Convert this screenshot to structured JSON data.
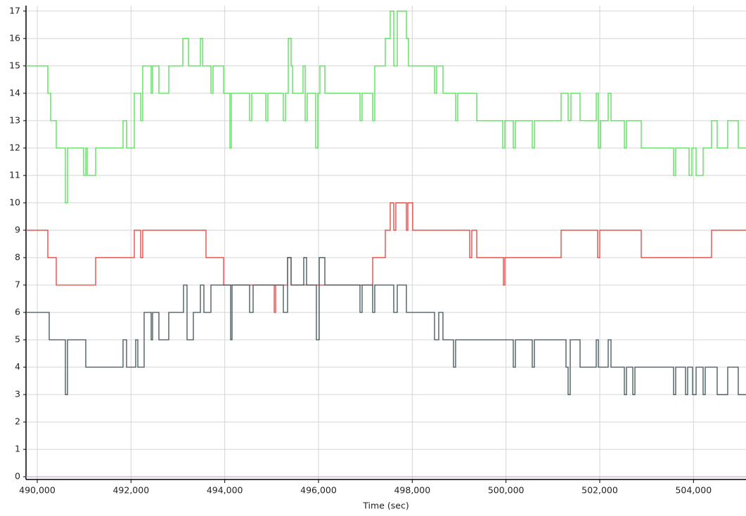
{
  "chart_data": {
    "type": "step",
    "x_label": "Time (sec)",
    "xlim": [
      489760,
      505120
    ],
    "ylim": [
      -0.1,
      17.2
    ],
    "xticks": [
      {
        "value": 490000,
        "label": "490,000"
      },
      {
        "value": 492000,
        "label": "492,000"
      },
      {
        "value": 494000,
        "label": "494,000"
      },
      {
        "value": 496000,
        "label": "496,000"
      },
      {
        "value": 498000,
        "label": "498,000"
      },
      {
        "value": 500000,
        "label": "500,000"
      },
      {
        "value": 502000,
        "label": "502,000"
      },
      {
        "value": 504000,
        "label": "504,000"
      }
    ],
    "yticks": [
      0,
      1,
      2,
      3,
      4,
      5,
      6,
      7,
      8,
      9,
      10,
      11,
      12,
      13,
      14,
      15,
      16,
      17
    ],
    "grid": true,
    "series": [
      {
        "color": "#4ee04e",
        "x": [
          489760,
          490225,
          490285,
          490405,
          490600,
          490645,
          490990,
          491035,
          491065,
          491245,
          491830,
          491905,
          492070,
          492205,
          492250,
          492430,
          492460,
          492595,
          492805,
          493105,
          493225,
          493480,
          493525,
          493705,
          493750,
          493975,
          494110,
          494140,
          494530,
          494575,
          494875,
          494920,
          495250,
          495295,
          495355,
          495415,
          495445,
          495670,
          495715,
          495760,
          495940,
          495985,
          496030,
          496135,
          496885,
          496930,
          497155,
          497200,
          497425,
          497530,
          497605,
          497680,
          497875,
          497920,
          498475,
          498520,
          498655,
          498925,
          498970,
          499375,
          499930,
          499975,
          500155,
          500200,
          500560,
          500605,
          501175,
          501325,
          501385,
          501580,
          501925,
          501970,
          502015,
          502180,
          502240,
          502525,
          502570,
          502885,
          503575,
          503620,
          503905,
          503965,
          504055,
          504205,
          504385,
          504505,
          504730,
          504955,
          505120
        ],
        "values": [
          15,
          14,
          13,
          12,
          10,
          12,
          11,
          12,
          11,
          12,
          13,
          12,
          14,
          13,
          15,
          14,
          15,
          14,
          15,
          16,
          15,
          16,
          15,
          14,
          15,
          14,
          12,
          14,
          13,
          14,
          13,
          14,
          13,
          14,
          16,
          15,
          14,
          15,
          13,
          14,
          12,
          14,
          15,
          14,
          13,
          14,
          13,
          15,
          16,
          17,
          15,
          17,
          16,
          15,
          14,
          15,
          14,
          13,
          14,
          13,
          12,
          13,
          12,
          13,
          12,
          13,
          14,
          13,
          14,
          13,
          14,
          12,
          13,
          14,
          13,
          12,
          13,
          12,
          11,
          12,
          11,
          12,
          11,
          12,
          13,
          12,
          13,
          12,
          12
        ]
      },
      {
        "color": "#e8403a",
        "x": [
          489760,
          490225,
          490405,
          491245,
          492070,
          492205,
          492250,
          493600,
          493975,
          495055,
          495085,
          495340,
          495415,
          497155,
          497425,
          497530,
          497605,
          497650,
          497875,
          497905,
          498010,
          499225,
          499270,
          499375,
          499945,
          499975,
          501175,
          501955,
          502000,
          502885,
          504385,
          505120
        ],
        "values": [
          9,
          8,
          7,
          8,
          9,
          8,
          9,
          8,
          7,
          6,
          7,
          8,
          7,
          8,
          9,
          10,
          9,
          10,
          9,
          10,
          9,
          8,
          9,
          8,
          7,
          8,
          9,
          8,
          9,
          8,
          9,
          9
        ]
      },
      {
        "color": "#3d5157",
        "x": [
          489760,
          490255,
          490600,
          490645,
          491035,
          491830,
          491905,
          492100,
          492145,
          492280,
          492430,
          492460,
          492595,
          492805,
          493120,
          493195,
          493330,
          493480,
          493555,
          493705,
          494125,
          494155,
          494530,
          494605,
          495250,
          495340,
          495415,
          495685,
          495745,
          495955,
          496015,
          496135,
          496885,
          496930,
          497155,
          497200,
          497605,
          497680,
          497875,
          498475,
          498565,
          498655,
          498880,
          498925,
          500155,
          500200,
          500560,
          500605,
          501280,
          501325,
          501370,
          501580,
          501925,
          501970,
          502180,
          502240,
          502525,
          502570,
          502705,
          502750,
          503575,
          503620,
          503830,
          503875,
          503980,
          504055,
          504205,
          504250,
          504505,
          504730,
          504955,
          505120
        ],
        "values": [
          6,
          5,
          3,
          5,
          4,
          5,
          4,
          5,
          4,
          6,
          5,
          6,
          5,
          6,
          7,
          5,
          6,
          7,
          6,
          7,
          5,
          7,
          6,
          7,
          6,
          8,
          7,
          8,
          7,
          5,
          8,
          7,
          6,
          7,
          6,
          7,
          6,
          7,
          6,
          5,
          6,
          5,
          4,
          5,
          4,
          5,
          4,
          5,
          4,
          3,
          5,
          4,
          5,
          4,
          5,
          4,
          3,
          4,
          3,
          4,
          3,
          4,
          3,
          4,
          3,
          4,
          3,
          4,
          3,
          4,
          3,
          3
        ]
      },
      {
        "color": "#c9a9d9",
        "x": [
          489760,
          505120
        ],
        "values": [
          0,
          0
        ]
      }
    ]
  }
}
